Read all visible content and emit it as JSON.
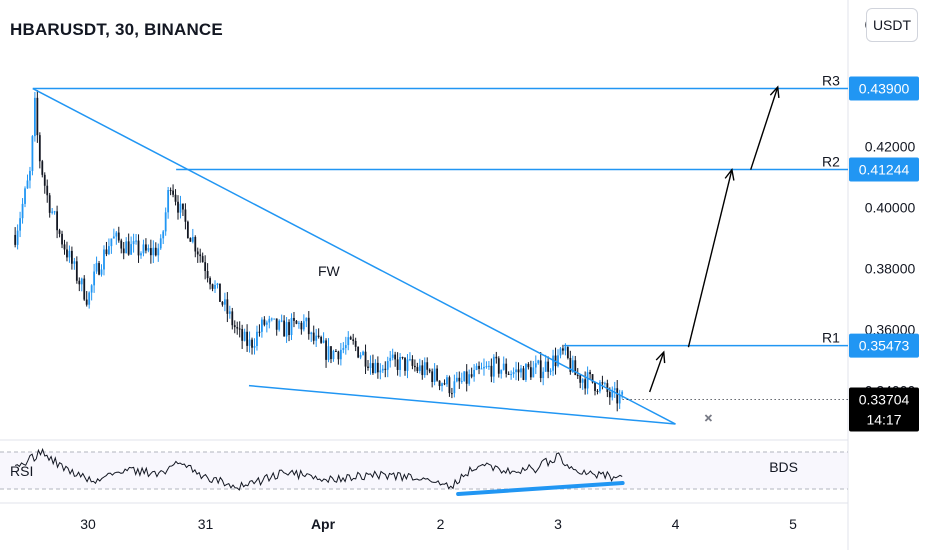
{
  "chart_title": "HBARUSDT, 30, BINANCE",
  "unit_label": "USDT",
  "colors": {
    "bull": "#2196F3",
    "bear": "#131722",
    "line": "#2196F3",
    "arrow": "#000000",
    "tag_bg": "#2196F3",
    "last_bg": "#000000"
  },
  "chart_data": {
    "type": "candlestick",
    "title": "HBARUSDT, 30, BINANCE",
    "ylim": [
      0.326,
      0.4615
    ],
    "y_ticks": [
      {
        "value": 0.46,
        "label": "0.46000"
      },
      {
        "value": 0.42,
        "label": "0.42000"
      },
      {
        "value": 0.4,
        "label": "0.40000"
      },
      {
        "value": 0.38,
        "label": "0.38000"
      },
      {
        "value": 0.36,
        "label": "0.36000"
      },
      {
        "value": 0.34,
        "label": "0.34000"
      }
    ],
    "x_ticks": [
      {
        "label": "30",
        "day": 0
      },
      {
        "label": "31",
        "day": 1
      },
      {
        "label": "Apr",
        "day": 2
      },
      {
        "label": "2",
        "day": 3
      },
      {
        "label": "3",
        "day": 4
      },
      {
        "label": "4",
        "day": 5
      },
      {
        "label": "5",
        "day": 6
      }
    ],
    "price_path": [
      [
        -0.62,
        0.391
      ],
      [
        -0.55,
        0.402
      ],
      [
        -0.48,
        0.413
      ],
      [
        -0.46,
        0.437
      ],
      [
        -0.42,
        0.418
      ],
      [
        -0.35,
        0.404
      ],
      [
        -0.25,
        0.392
      ],
      [
        -0.1,
        0.378
      ],
      [
        0.0,
        0.37
      ],
      [
        0.08,
        0.38
      ],
      [
        0.2,
        0.39
      ],
      [
        0.35,
        0.387
      ],
      [
        0.5,
        0.385
      ],
      [
        0.62,
        0.387
      ],
      [
        0.7,
        0.409
      ],
      [
        0.8,
        0.397
      ],
      [
        0.95,
        0.385
      ],
      [
        1.1,
        0.372
      ],
      [
        1.3,
        0.357
      ],
      [
        1.38,
        0.355
      ],
      [
        1.5,
        0.362
      ],
      [
        1.65,
        0.36
      ],
      [
        1.85,
        0.362
      ],
      [
        1.9,
        0.357
      ],
      [
        2.05,
        0.352
      ],
      [
        2.25,
        0.355
      ],
      [
        2.45,
        0.348
      ],
      [
        2.65,
        0.349
      ],
      [
        2.9,
        0.346
      ],
      [
        3.1,
        0.341
      ],
      [
        3.3,
        0.345
      ],
      [
        3.45,
        0.348
      ],
      [
        3.62,
        0.346
      ],
      [
        3.85,
        0.347
      ],
      [
        4.05,
        0.352
      ],
      [
        4.15,
        0.345
      ],
      [
        4.35,
        0.342
      ],
      [
        4.45,
        0.338
      ],
      [
        4.55,
        0.337
      ]
    ],
    "candle_step": 0.021,
    "last_price": {
      "value": 0.33704,
      "label": "0.33704",
      "countdown": "14:17"
    },
    "levels": [
      {
        "name": "R3",
        "value": 0.439,
        "label": "0.43900",
        "from_day": -0.47
      },
      {
        "name": "R2",
        "value": 0.41244,
        "label": "0.41244",
        "from_day": 0.75
      },
      {
        "name": "R1",
        "value": 0.35473,
        "label": "0.35473",
        "from_day": 4.05
      }
    ],
    "wedge": {
      "upper": {
        "from": [
          -0.47,
          0.439
        ],
        "to": [
          5.0,
          0.329
        ]
      },
      "lower": {
        "from": [
          1.37,
          0.3416
        ],
        "to": [
          5.0,
          0.329
        ]
      }
    },
    "arrows": [
      {
        "from": [
          4.78,
          0.3395
        ],
        "to": [
          4.9,
          0.3526
        ]
      },
      {
        "from": [
          5.11,
          0.3542
        ],
        "to": [
          5.48,
          0.4124
        ]
      },
      {
        "from": [
          5.64,
          0.4124
        ],
        "to": [
          5.87,
          0.4395
        ]
      }
    ],
    "annotations": [
      {
        "text": "FW",
        "day": 2.05,
        "value": 0.3775
      },
      {
        "text": "BDS",
        "day": 5.92,
        "value": 0.0
      }
    ],
    "invalidation": {
      "day": 5.28,
      "value": 0.331
    },
    "rsi": {
      "label": "RSI",
      "divergence_from_day": 3.15,
      "divergence_to_day": 4.55,
      "divergence_from": 0.15,
      "divergence_to": 0.5
    }
  }
}
